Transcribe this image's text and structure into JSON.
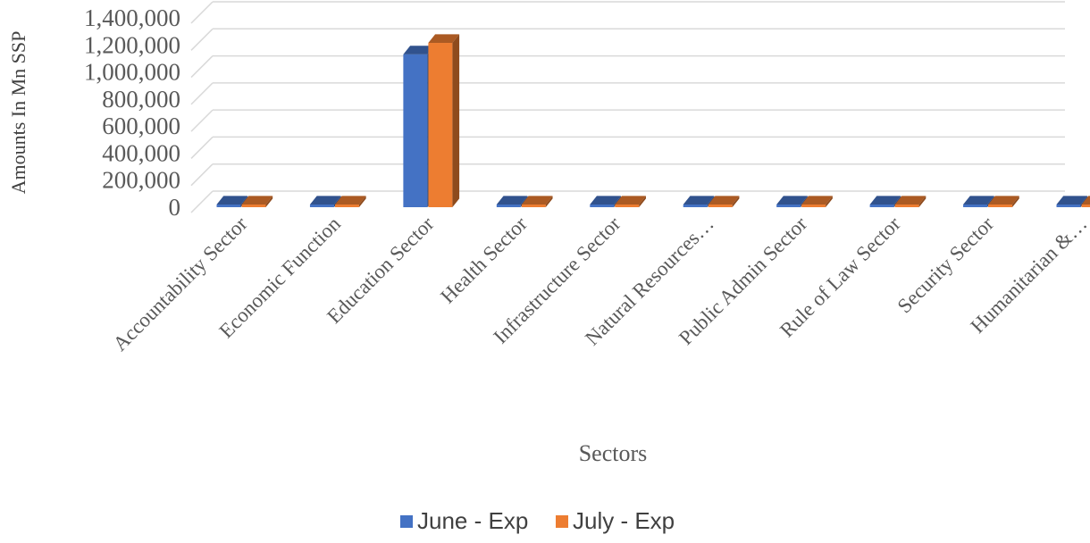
{
  "chart_data": {
    "type": "bar",
    "variant": "3d-clustered-column",
    "categories": [
      "Accountability Sector",
      "Economic Function",
      "Education Sector",
      "Health Sector",
      "Infrastructure Sector",
      "Natural Resources…",
      "Public Admin Sector",
      "Rule of Law Sector",
      "Security Sector",
      "Humanitarian &…"
    ],
    "series": [
      {
        "name": "June - Exp",
        "color": "#4472C4",
        "values": [
          4000,
          10000,
          1130000,
          5000,
          3000,
          4000,
          12000,
          10000,
          3000,
          5000
        ]
      },
      {
        "name": "July - Exp",
        "color": "#ED7D31",
        "values": [
          4000,
          11000,
          1215000,
          5000,
          3000,
          4000,
          13000,
          10000,
          3000,
          5000
        ]
      }
    ],
    "xlabel": "Sectors",
    "ylabel": "Amounts In Mn SSP",
    "ylim": [
      0,
      1400000
    ],
    "yticks": [
      "0",
      "200,000",
      "400,000",
      "600,000",
      "800,000",
      "1,000,000",
      "1,200,000",
      "1,400,000"
    ],
    "grid": true,
    "legend_position": "bottom"
  }
}
